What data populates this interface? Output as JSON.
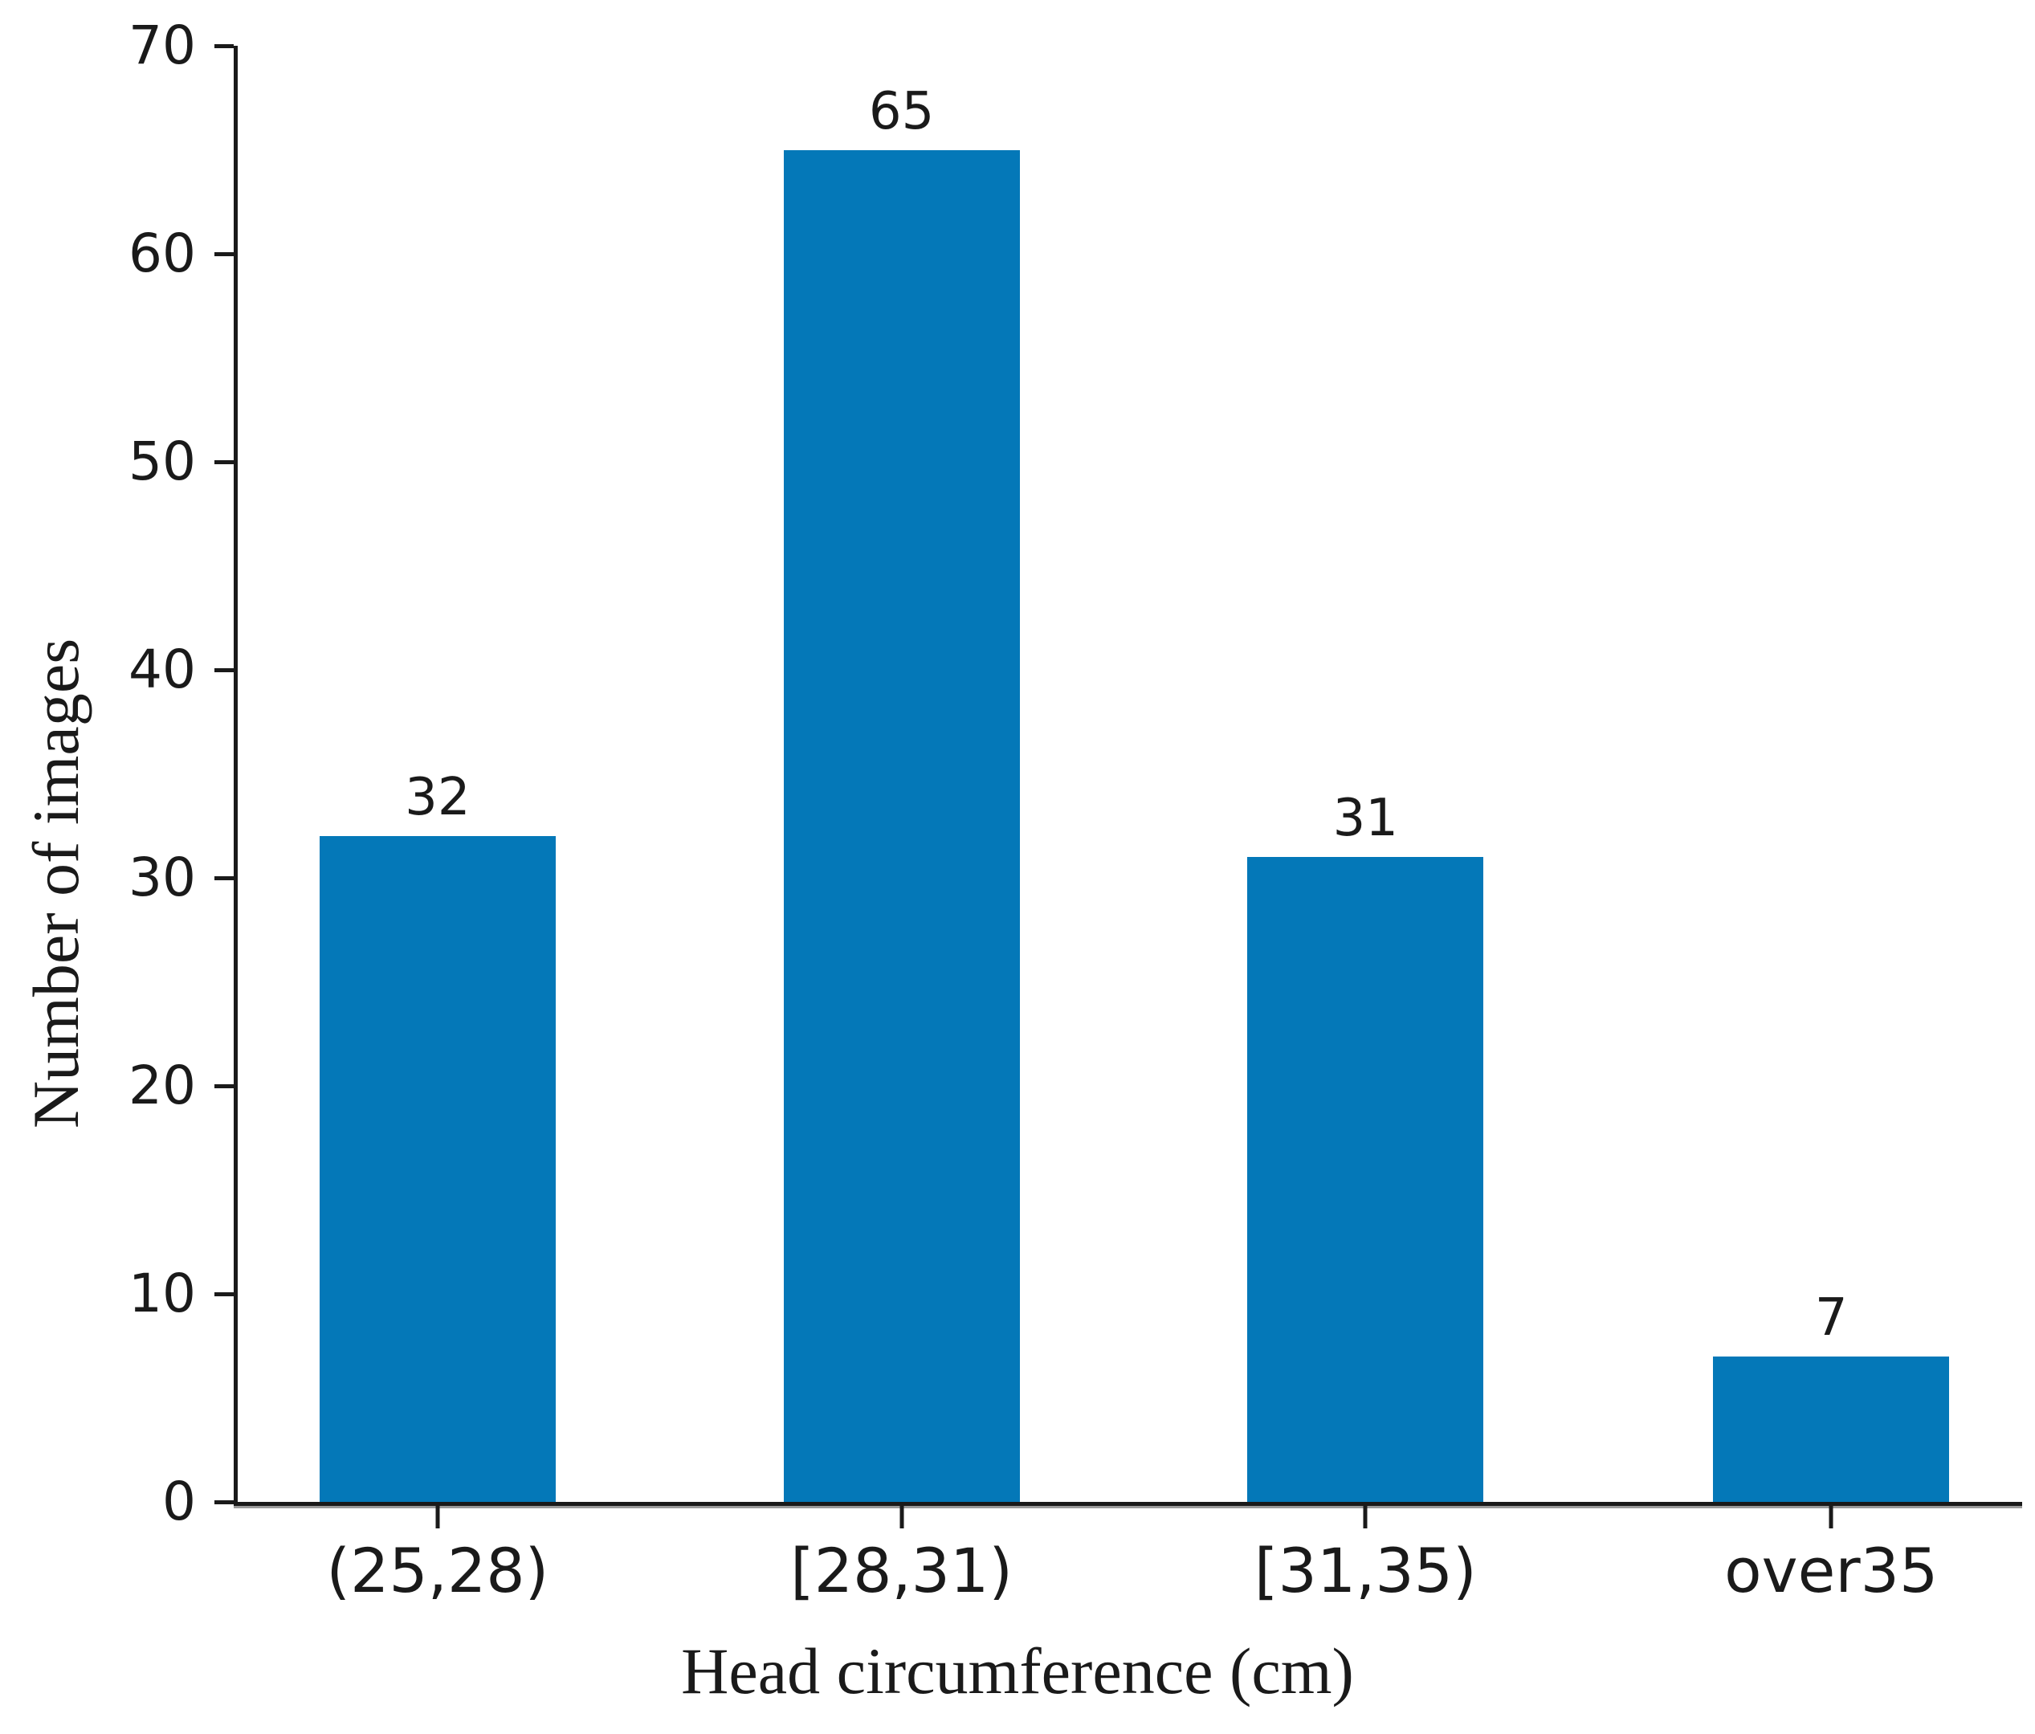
{
  "chart_data": {
    "type": "bar",
    "title": "",
    "categories": [
      "(25,28)",
      "[28,31)",
      "[31,35)",
      "over35"
    ],
    "values": [
      32,
      65,
      31,
      7
    ],
    "bar_labels": [
      "32",
      "65",
      "31",
      "7"
    ],
    "xlabel": "Head circumference (cm)",
    "ylabel": "Number of images",
    "ylim": [
      0,
      70
    ],
    "yticks": [
      0,
      10,
      20,
      30,
      40,
      50,
      60,
      70
    ],
    "grid": false,
    "legend": "none",
    "colors": {
      "bar": "#0478b8",
      "axis": "#1a1a1a",
      "background": "#ffffff"
    }
  }
}
